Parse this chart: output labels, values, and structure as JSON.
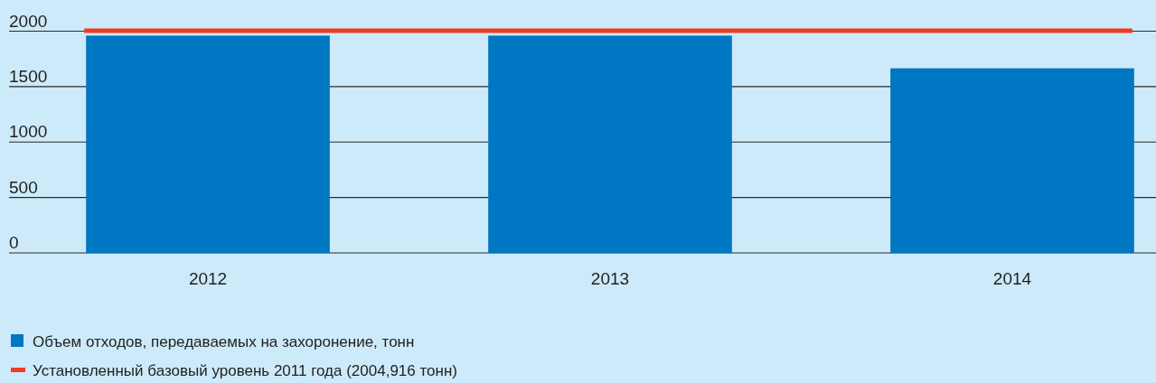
{
  "chart_data": {
    "type": "bar",
    "categories": [
      "2012",
      "2013",
      "2014"
    ],
    "series": [
      {
        "name": "Объем отходов, передаваемых на захоронение, тонн",
        "color": "#0077c2",
        "values": [
          1960,
          1960,
          1665
        ]
      }
    ],
    "ylim": [
      0,
      2000
    ],
    "yticks": [
      0,
      500,
      1000,
      1500,
      2000
    ],
    "grid": "y",
    "legend": "bottom",
    "ref_lines": [
      {
        "axis": "y",
        "value": 2004.916,
        "label": "Установленный базовый уровень 2011 года (2004,916 тонн)",
        "color": "#f03c24"
      }
    ]
  }
}
